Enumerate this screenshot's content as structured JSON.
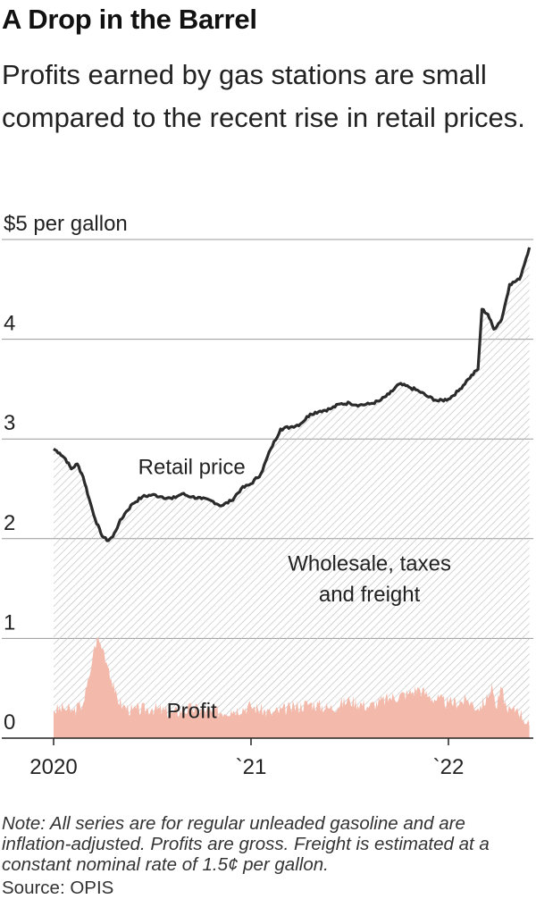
{
  "title": "A Drop in the Barrel",
  "subtitle": "Profits earned by gas stations are small compared to the recent rise in retail prices.",
  "note": "Note: All series are for regular unleaded gasoline and are inflation-adjusted. Profits are gross. Freight is estimated at a constant nominal rate of 1.5¢ per gallon.",
  "source": "Source: OPIS",
  "chart_data": {
    "type": "area",
    "ylim": [
      0,
      5
    ],
    "y_ticks": [
      {
        "value": 5,
        "label": "$5 per gallon"
      },
      {
        "value": 4,
        "label": "4"
      },
      {
        "value": 3,
        "label": "3"
      },
      {
        "value": 2,
        "label": "2"
      },
      {
        "value": 1,
        "label": "1"
      },
      {
        "value": 0,
        "label": "0"
      }
    ],
    "xlim": [
      2020.0,
      2022.43
    ],
    "x_ticks": [
      {
        "value": 2020.0,
        "label": "2020"
      },
      {
        "value": 2021.0,
        "label": "`21"
      },
      {
        "value": 2022.0,
        "label": "`22"
      }
    ],
    "annotations": [
      {
        "text": "Retail price",
        "x": 2020.7,
        "y": 2.65
      },
      {
        "text": "Wholesale, taxes",
        "x": 2021.6,
        "y": 1.68
      },
      {
        "text": "and freight",
        "x": 2021.6,
        "y": 1.37
      },
      {
        "text": "Profit",
        "x": 2020.7,
        "y": 0.2
      }
    ],
    "colors": {
      "retail": "#2b2b2b",
      "profit": "#f3b9aa",
      "hatch": "#bdbdbd",
      "grid": "#999999"
    },
    "series": [
      {
        "name": "Retail price",
        "points": [
          [
            2020.0,
            2.9
          ],
          [
            2020.03,
            2.86
          ],
          [
            2020.06,
            2.8
          ],
          [
            2020.09,
            2.7
          ],
          [
            2020.12,
            2.75
          ],
          [
            2020.15,
            2.62
          ],
          [
            2020.18,
            2.4
          ],
          [
            2020.21,
            2.2
          ],
          [
            2020.24,
            2.05
          ],
          [
            2020.27,
            1.98
          ],
          [
            2020.3,
            2.02
          ],
          [
            2020.33,
            2.15
          ],
          [
            2020.36,
            2.25
          ],
          [
            2020.4,
            2.35
          ],
          [
            2020.45,
            2.42
          ],
          [
            2020.5,
            2.44
          ],
          [
            2020.55,
            2.42
          ],
          [
            2020.6,
            2.4
          ],
          [
            2020.65,
            2.45
          ],
          [
            2020.7,
            2.42
          ],
          [
            2020.75,
            2.4
          ],
          [
            2020.8,
            2.38
          ],
          [
            2020.85,
            2.33
          ],
          [
            2020.9,
            2.38
          ],
          [
            2020.95,
            2.5
          ],
          [
            2021.0,
            2.55
          ],
          [
            2021.05,
            2.65
          ],
          [
            2021.1,
            2.9
          ],
          [
            2021.15,
            3.1
          ],
          [
            2021.2,
            3.12
          ],
          [
            2021.25,
            3.15
          ],
          [
            2021.3,
            3.25
          ],
          [
            2021.35,
            3.28
          ],
          [
            2021.4,
            3.3
          ],
          [
            2021.45,
            3.35
          ],
          [
            2021.5,
            3.36
          ],
          [
            2021.55,
            3.34
          ],
          [
            2021.6,
            3.35
          ],
          [
            2021.65,
            3.38
          ],
          [
            2021.7,
            3.45
          ],
          [
            2021.75,
            3.55
          ],
          [
            2021.8,
            3.52
          ],
          [
            2021.85,
            3.48
          ],
          [
            2021.9,
            3.42
          ],
          [
            2021.95,
            3.38
          ],
          [
            2022.0,
            3.4
          ],
          [
            2022.05,
            3.48
          ],
          [
            2022.1,
            3.6
          ],
          [
            2022.15,
            3.7
          ],
          [
            2022.17,
            4.3
          ],
          [
            2022.2,
            4.25
          ],
          [
            2022.23,
            4.1
          ],
          [
            2022.27,
            4.2
          ],
          [
            2022.31,
            4.55
          ],
          [
            2022.36,
            4.6
          ],
          [
            2022.41,
            4.92
          ]
        ]
      },
      {
        "name": "Profit",
        "points": [
          [
            2020.0,
            0.28
          ],
          [
            2020.05,
            0.3
          ],
          [
            2020.1,
            0.27
          ],
          [
            2020.15,
            0.35
          ],
          [
            2020.18,
            0.6
          ],
          [
            2020.2,
            0.85
          ],
          [
            2020.22,
            1.0
          ],
          [
            2020.25,
            0.9
          ],
          [
            2020.28,
            0.7
          ],
          [
            2020.31,
            0.45
          ],
          [
            2020.35,
            0.32
          ],
          [
            2020.4,
            0.28
          ],
          [
            2020.5,
            0.3
          ],
          [
            2020.6,
            0.25
          ],
          [
            2020.7,
            0.3
          ],
          [
            2020.8,
            0.26
          ],
          [
            2020.9,
            0.28
          ],
          [
            2021.0,
            0.32
          ],
          [
            2021.1,
            0.25
          ],
          [
            2021.2,
            0.3
          ],
          [
            2021.3,
            0.35
          ],
          [
            2021.4,
            0.3
          ],
          [
            2021.5,
            0.38
          ],
          [
            2021.6,
            0.32
          ],
          [
            2021.7,
            0.4
          ],
          [
            2021.8,
            0.45
          ],
          [
            2021.85,
            0.5
          ],
          [
            2021.9,
            0.42
          ],
          [
            2022.0,
            0.35
          ],
          [
            2022.1,
            0.38
          ],
          [
            2022.15,
            0.3
          ],
          [
            2022.2,
            0.4
          ],
          [
            2022.22,
            0.55
          ],
          [
            2022.24,
            0.3
          ],
          [
            2022.27,
            0.5
          ],
          [
            2022.3,
            0.25
          ],
          [
            2022.35,
            0.3
          ],
          [
            2022.41,
            0.12
          ]
        ]
      }
    ]
  }
}
